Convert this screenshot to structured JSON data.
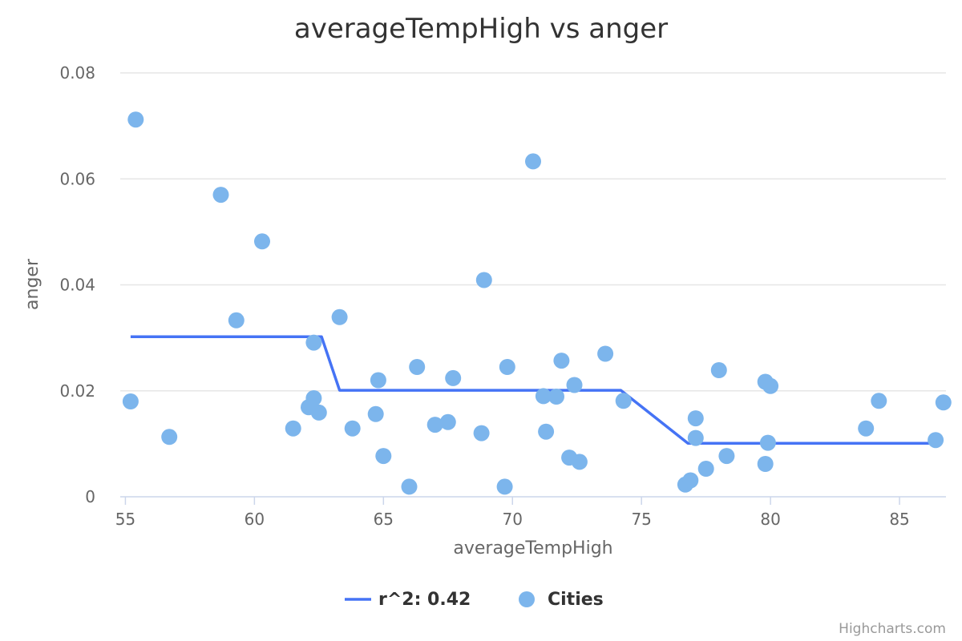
{
  "chart_data": {
    "type": "scatter",
    "title": "averageTempHigh vs anger",
    "xlabel": "averageTempHigh",
    "ylabel": "anger",
    "xlim": [
      54.8,
      86.8
    ],
    "ylim": [
      0,
      0.08
    ],
    "x_ticks": [
      55,
      60,
      65,
      70,
      75,
      80,
      85
    ],
    "y_ticks": [
      0,
      0.02,
      0.04,
      0.06,
      0.08
    ],
    "y_tick_labels": [
      "0",
      "0.02",
      "0.04",
      "0.06",
      "0.08"
    ],
    "grid": true,
    "legend_position": "bottom-center",
    "series": [
      {
        "name": "r^2: 0.42",
        "type": "line",
        "color": "#4573f5",
        "points": [
          [
            55.2,
            0.0302
          ],
          [
            62.6,
            0.0302
          ],
          [
            63.3,
            0.0201
          ],
          [
            74.2,
            0.0201
          ],
          [
            76.8,
            0.0101
          ],
          [
            86.6,
            0.0101
          ]
        ]
      },
      {
        "name": "Cities",
        "type": "scatter",
        "color": "#7cb5ec",
        "points": [
          [
            55.2,
            0.018
          ],
          [
            55.4,
            0.0712
          ],
          [
            56.7,
            0.0113
          ],
          [
            58.7,
            0.057
          ],
          [
            59.3,
            0.0333
          ],
          [
            60.3,
            0.0482
          ],
          [
            61.5,
            0.0129
          ],
          [
            62.1,
            0.0169
          ],
          [
            62.3,
            0.0186
          ],
          [
            62.3,
            0.0291
          ],
          [
            62.5,
            0.0159
          ],
          [
            63.3,
            0.0339
          ],
          [
            63.8,
            0.0129
          ],
          [
            64.7,
            0.0156
          ],
          [
            64.8,
            0.022
          ],
          [
            65.0,
            0.0077
          ],
          [
            66.0,
            0.0019
          ],
          [
            66.3,
            0.0245
          ],
          [
            67.0,
            0.0136
          ],
          [
            67.5,
            0.0141
          ],
          [
            67.7,
            0.0224
          ],
          [
            68.8,
            0.012
          ],
          [
            68.9,
            0.0409
          ],
          [
            69.7,
            0.0019
          ],
          [
            69.8,
            0.0245
          ],
          [
            70.8,
            0.0633
          ],
          [
            71.2,
            0.019
          ],
          [
            71.3,
            0.0123
          ],
          [
            71.7,
            0.0189
          ],
          [
            71.9,
            0.0257
          ],
          [
            72.2,
            0.0074
          ],
          [
            72.4,
            0.0211
          ],
          [
            72.6,
            0.0066
          ],
          [
            73.6,
            0.027
          ],
          [
            74.3,
            0.0181
          ],
          [
            76.7,
            0.0023
          ],
          [
            76.9,
            0.0031
          ],
          [
            77.1,
            0.0111
          ],
          [
            77.1,
            0.0148
          ],
          [
            77.5,
            0.0053
          ],
          [
            78.0,
            0.0239
          ],
          [
            78.3,
            0.0077
          ],
          [
            79.8,
            0.0217
          ],
          [
            79.8,
            0.0062
          ],
          [
            79.9,
            0.0102
          ],
          [
            80.0,
            0.0209
          ],
          [
            83.7,
            0.0129
          ],
          [
            84.2,
            0.0181
          ],
          [
            86.4,
            0.0107
          ],
          [
            86.7,
            0.0178
          ]
        ]
      }
    ]
  },
  "credits": "Highcharts.com"
}
